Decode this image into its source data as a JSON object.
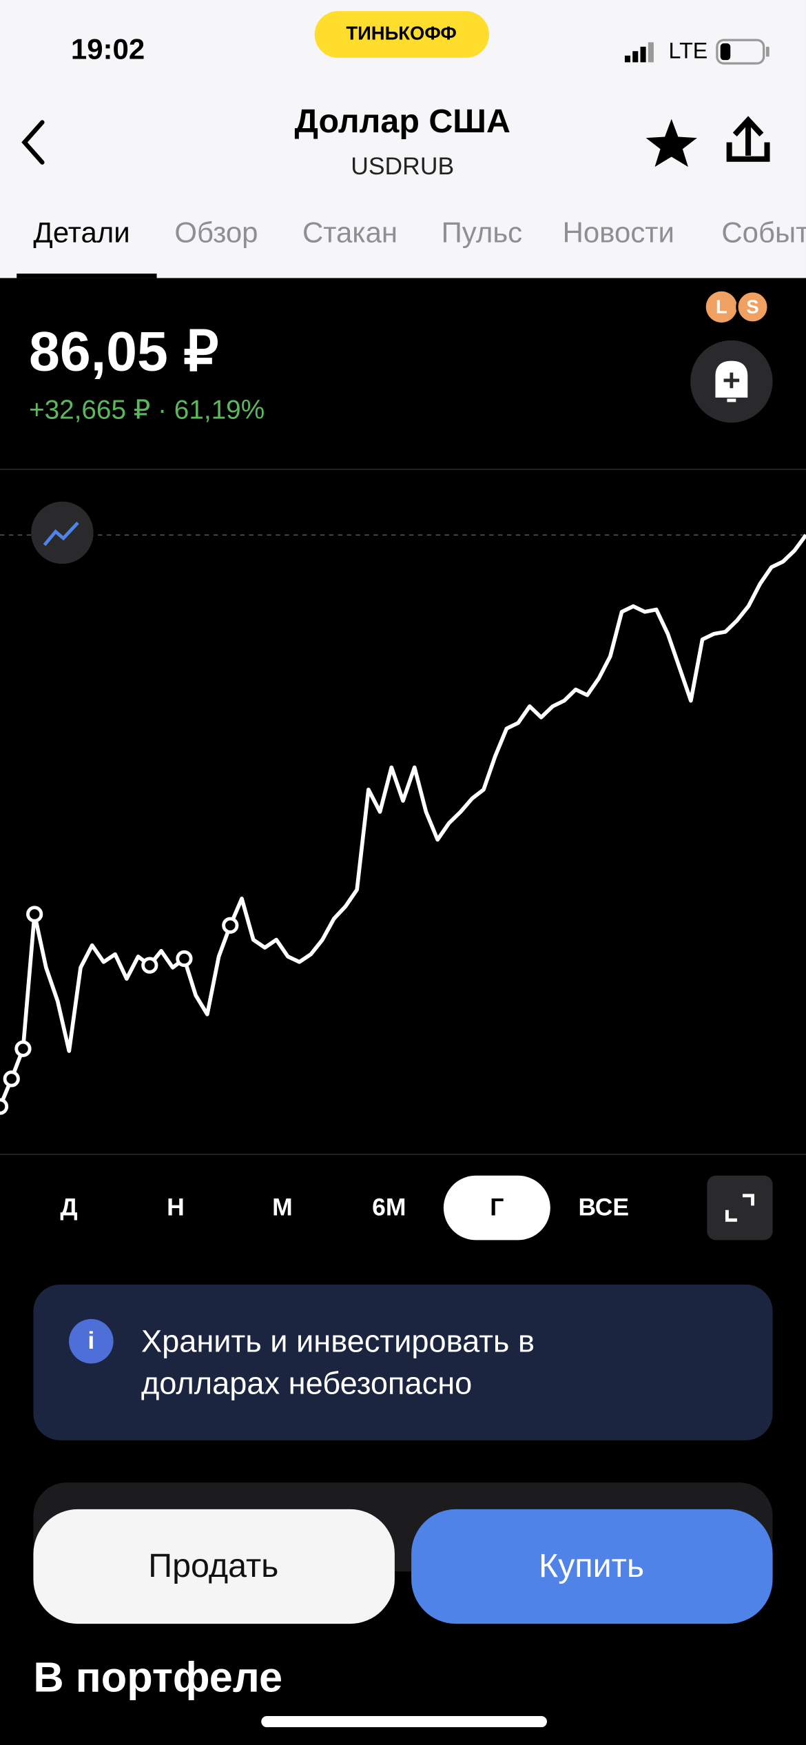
{
  "status_bar": {
    "time": "19:02",
    "logo": "ТИНЬКОФФ",
    "network": "LTE"
  },
  "header": {
    "title": "Доллар США",
    "ticker": "USDRUB"
  },
  "tabs": [
    "Детали",
    "Обзор",
    "Стакан",
    "Пульс",
    "Новости",
    "События"
  ],
  "quote": {
    "price": "86,05 ₽",
    "change": "+32,665 ₽ · 61,19%",
    "badges": [
      "L",
      "S"
    ]
  },
  "chart_data": {
    "type": "line",
    "color": "#ffffff",
    "values": [
      53.39,
      54.97,
      56.69,
      64.38,
      61.33,
      59.42,
      56.56,
      61.33,
      62.6,
      61.65,
      62.09,
      60.69,
      61.96,
      61.46,
      62.28,
      61.33,
      61.84,
      59.74,
      58.66,
      61.96,
      63.74,
      65.27,
      62.92,
      62.47,
      62.92,
      61.96,
      61.65,
      62.09,
      62.92,
      64.12,
      64.82,
      65.78,
      71.5,
      70.23,
      72.77,
      70.86,
      72.77,
      70.23,
      68.64,
      69.59,
      70.23,
      70.99,
      71.5,
      73.4,
      74.99,
      75.31,
      76.26,
      75.63,
      76.26,
      76.58,
      77.22,
      76.9,
      77.85,
      79.12,
      81.66,
      81.98,
      81.66,
      81.79,
      80.4,
      78.49,
      76.58,
      80.08,
      80.4,
      80.52,
      81.16,
      81.98,
      83.25,
      84.21,
      84.53,
      85.16,
      86.05
    ],
    "ylim": [
      50.65,
      89.74
    ]
  },
  "periods": [
    "Д",
    "Н",
    "М",
    "6М",
    "Г",
    "ВСЕ"
  ],
  "notice": {
    "icon": "i",
    "lines": [
      "Хранить и инвестировать в",
      "долларах небезопасно"
    ]
  },
  "buttons": {
    "sell": "Продать",
    "buy": "Купить"
  },
  "section_title": "В портфеле"
}
